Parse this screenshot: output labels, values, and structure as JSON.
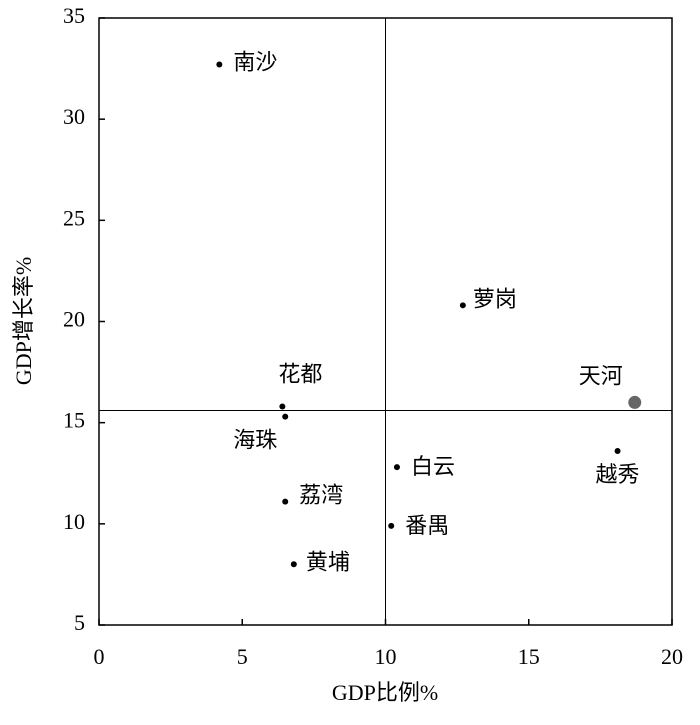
{
  "chart_data": {
    "type": "scatter",
    "xlabel": "GDP比例%",
    "ylabel": "GDP增长率%",
    "xlim": [
      0,
      20
    ],
    "xticks": [
      0,
      5,
      10,
      15,
      20
    ],
    "ylim": [
      5,
      35
    ],
    "yticks": [
      5,
      10,
      15,
      20,
      25,
      30,
      35
    ],
    "labels": [
      "南沙",
      "萝岗",
      "天河",
      "越秀",
      "花都",
      "海珠",
      "白云",
      "荔湾",
      "番禺",
      "黄埔"
    ],
    "x": [
      4.2,
      12.7,
      18.7,
      18.1,
      6.4,
      6.5,
      10.4,
      6.5,
      10.2,
      6.8
    ],
    "values": [
      32.7,
      20.8,
      16.0,
      13.6,
      15.8,
      15.3,
      12.8,
      11.1,
      9.9,
      8.0
    ],
    "colors": [
      "#000000",
      "#000000",
      "#666666",
      "#000000",
      "#000000",
      "#000000",
      "#000000",
      "#000000",
      "#000000",
      "#000000"
    ],
    "marker_sizes": [
      3,
      3,
      6.5,
      3,
      3,
      3,
      3,
      3,
      3,
      3
    ],
    "x_reference_line": 10,
    "y_reference_line": 15.6
  }
}
